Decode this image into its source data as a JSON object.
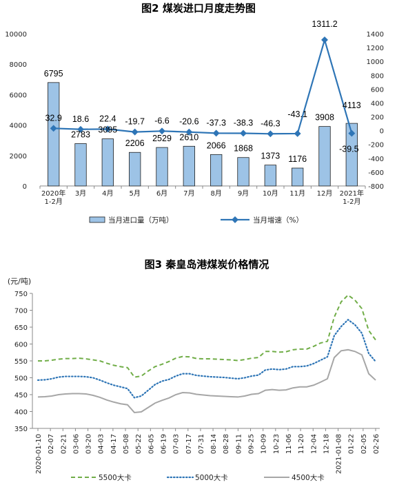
{
  "chart_data": [
    {
      "type": "bar+line",
      "title": "图2  煤炭进口月度走势图",
      "categories": [
        "2020年\n1-2月",
        "3月",
        "4月",
        "5月",
        "6月",
        "7月",
        "8月",
        "9月",
        "10月",
        "11月",
        "12月",
        "2021年\n1-2月"
      ],
      "series": [
        {
          "name": "当月进口量（万吨）",
          "type": "bar",
          "axis": "left",
          "color": "#9dc3e6",
          "values": [
            6795,
            2783,
            3095,
            2206,
            2529,
            2610,
            2066,
            1868,
            1373,
            1176,
            3908,
            4113
          ]
        },
        {
          "name": "当月增速（%）",
          "type": "line",
          "axis": "right",
          "color": "#2e75b6",
          "values": [
            32.9,
            18.6,
            22.4,
            -19.7,
            -6.6,
            -20.6,
            -37.3,
            -38.3,
            -46.3,
            -43.1,
            1311.2,
            -39.5
          ]
        }
      ],
      "y_left": {
        "min": 0,
        "max": 10000,
        "ticks": [
          "0",
          "2000",
          "4000",
          "6000",
          "8000",
          "10000"
        ]
      },
      "y_right": {
        "min": -800,
        "max": 1400,
        "ticks": [
          "-800",
          "-600",
          "-400",
          "-200",
          "0",
          "200",
          "400",
          "600",
          "800",
          "1000",
          "1200",
          "1400"
        ]
      },
      "legend": "bottom"
    },
    {
      "type": "line",
      "title": "图3  秦皇岛港煤炭价格情况",
      "ylabel": "(元/吨)",
      "ylim": [
        350,
        750
      ],
      "y_ticks": [
        "350",
        "400",
        "450",
        "500",
        "550",
        "600",
        "650",
        "700",
        "750"
      ],
      "x_ticks": [
        "2020-01-10",
        "02-07",
        "02-21",
        "03-06",
        "03-20",
        "04-03",
        "04-17",
        "05-08",
        "05-22",
        "06-05",
        "06-19",
        "07-03",
        "07-17",
        "07-31",
        "08-14",
        "08-28",
        "09-11",
        "09-25",
        "10-09",
        "10-23",
        "11-06",
        "11-20",
        "12-04",
        "12-18",
        "2021-01-08",
        "01-22",
        "02-05",
        "02-26"
      ],
      "series": [
        {
          "name": "5500大卡",
          "color": "#70ad47",
          "style": "dashed",
          "values": [
            550,
            550,
            552,
            555,
            557,
            557,
            558,
            556,
            553,
            550,
            543,
            537,
            533,
            530,
            502,
            505,
            520,
            533,
            540,
            548,
            558,
            563,
            562,
            557,
            556,
            556,
            555,
            554,
            553,
            551,
            554,
            558,
            560,
            578,
            578,
            576,
            577,
            583,
            585,
            585,
            593,
            603,
            608,
            680,
            725,
            745,
            730,
            705,
            640,
            612
          ]
        },
        {
          "name": "5000大卡",
          "color": "#2e75b6",
          "style": "dotted",
          "values": [
            493,
            494,
            497,
            502,
            504,
            504,
            504,
            503,
            500,
            493,
            485,
            478,
            473,
            468,
            441,
            446,
            463,
            480,
            490,
            495,
            505,
            512,
            512,
            507,
            505,
            503,
            502,
            501,
            499,
            497,
            500,
            505,
            508,
            523,
            526,
            524,
            526,
            533,
            533,
            535,
            542,
            552,
            562,
            625,
            652,
            672,
            657,
            632,
            572,
            548
          ]
        },
        {
          "name": "4500大卡",
          "color": "#a6a6a6",
          "style": "solid",
          "values": [
            443,
            444,
            446,
            450,
            452,
            453,
            453,
            452,
            448,
            442,
            434,
            428,
            423,
            420,
            397,
            399,
            412,
            425,
            433,
            440,
            450,
            456,
            455,
            451,
            449,
            447,
            446,
            445,
            444,
            443,
            446,
            451,
            453,
            463,
            465,
            463,
            464,
            470,
            473,
            473,
            478,
            487,
            497,
            560,
            580,
            583,
            578,
            568,
            512,
            493
          ]
        }
      ],
      "legend": "bottom"
    }
  ]
}
